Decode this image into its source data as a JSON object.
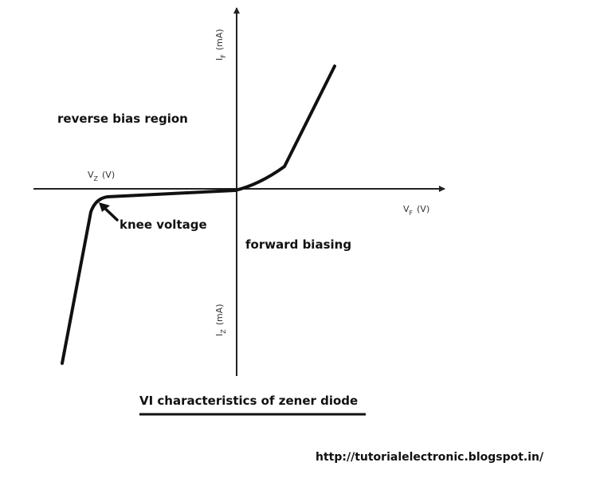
{
  "axes": {
    "vertical_positive": {
      "base": "I",
      "sub": "F",
      "unit": "(mA)"
    },
    "vertical_negative": {
      "base": "I",
      "sub": "Z",
      "unit": "(mA)"
    },
    "horizontal_positive": {
      "base": "V",
      "sub": "F",
      "unit": "(V)"
    },
    "horizontal_negative": {
      "base": "V",
      "sub": "Z",
      "unit": "(V)"
    }
  },
  "annotations": {
    "reverse_region": "reverse bias region",
    "forward_region": "forward biasing",
    "knee": "knee voltage"
  },
  "caption": "VI characteristics of zener diode",
  "source_url": "http://tutorialelectronic.blogspot.in/",
  "colors": {
    "curve": "#111111",
    "axis": "#222222",
    "background": "#ffffff"
  }
}
